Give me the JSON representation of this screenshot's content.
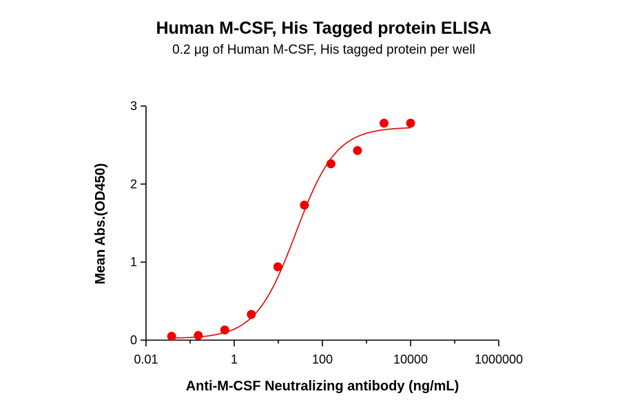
{
  "chart_data": {
    "type": "scatter",
    "title": "Human M-CSF, His Tagged protein ELISA",
    "subtitle": "0.2 μg of Human M-CSF, His tagged protein per well",
    "xlabel": "Anti-M-CSF Neutralizing antibody (ng/mL)",
    "ylabel": "Mean Abs.(OD450)",
    "x_scale": "log",
    "xlim": [
      0.01,
      1000000
    ],
    "ylim": [
      0,
      3
    ],
    "x_ticks": [
      0.01,
      1,
      100,
      10000,
      1000000
    ],
    "x_tick_labels": [
      "0.01",
      "1",
      "100",
      "10000",
      "1000000"
    ],
    "y_ticks": [
      0,
      1,
      2,
      3
    ],
    "y_tick_labels": [
      "0",
      "1",
      "2",
      "3"
    ],
    "grid": false,
    "point_color": "#ee0000",
    "curve_color": "#e60000",
    "series": [
      {
        "x": [
          0.0381,
          0.153,
          0.61,
          2.44,
          9.77,
          39.1,
          156,
          625,
          2500,
          10000
        ],
        "y": [
          0.05,
          0.06,
          0.13,
          0.33,
          0.94,
          1.73,
          2.26,
          2.43,
          2.78,
          2.78
        ]
      }
    ],
    "fit_curve": {
      "model": "4PL",
      "bottom": 0.02,
      "top": 2.73,
      "ec50": 25,
      "hill": 0.95
    }
  }
}
